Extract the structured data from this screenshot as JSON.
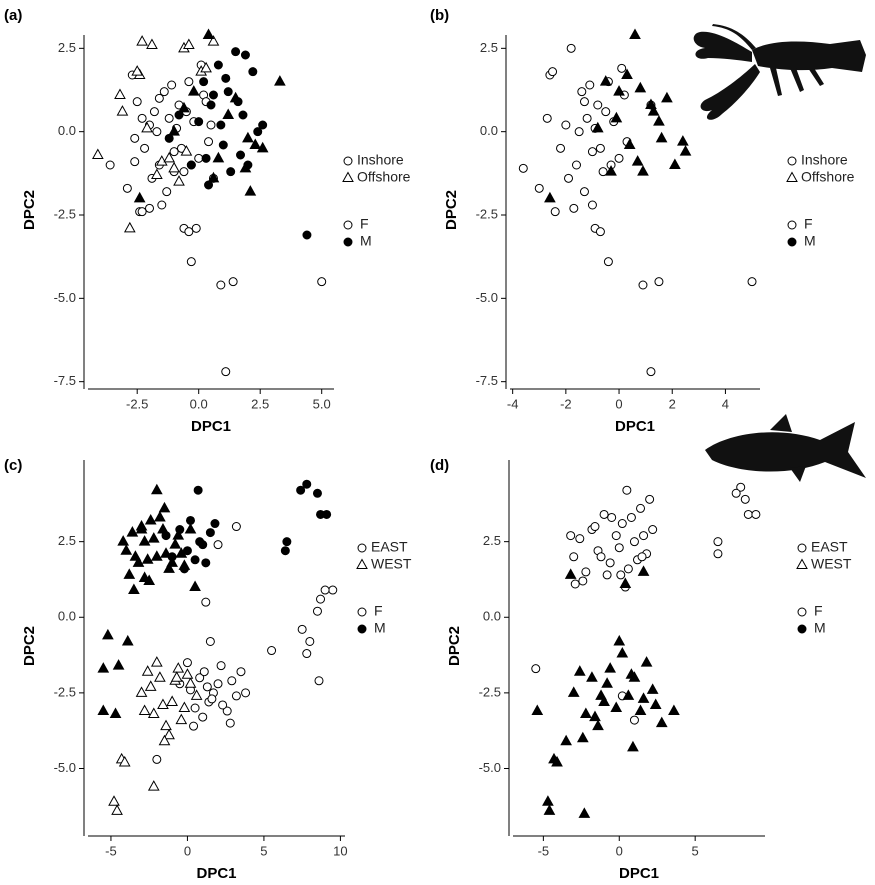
{
  "chart_data": [
    {
      "type": "scatter",
      "panel_label": "(a)",
      "xlabel": "DPC1",
      "ylabel": "DPC2",
      "xlim": [
        -4.5,
        5.5
      ],
      "ylim": [
        -7.6,
        2.9
      ],
      "xticks": [
        -2.5,
        {
          "value": 0,
          "label": "0.0"
        },
        2.5,
        {
          "value": 5,
          "label": "5.0"
        }
      ],
      "yticks": [
        -7.5,
        {
          "value": -5,
          "label": "-5.0"
        },
        -2.5,
        {
          "value": 0,
          "label": "0.0"
        },
        2.5
      ],
      "legend": {
        "shapes": [
          {
            "label": "Inshore",
            "shape": "circle"
          },
          {
            "label": "Offshore",
            "shape": "triangle"
          }
        ],
        "fills": [
          {
            "label": "F",
            "fill": "#ffffff"
          },
          {
            "label": "M",
            "fill": "#000000"
          }
        ]
      },
      "series": [
        {
          "shape": "circle",
          "fill": "#ffffff",
          "x": [
            -3.6,
            -2.9,
            -2.6,
            -2.3,
            -2.0,
            -1.5,
            -2.7,
            -2.5,
            -2.2,
            -2.0,
            -1.8,
            -1.6,
            -1.4,
            -1.2,
            -1.0,
            -0.8,
            -0.6,
            -0.4,
            -0.2,
            0.0,
            0.2,
            0.4,
            -1.9,
            -1.7,
            -1.3,
            -1.1,
            -0.9,
            -0.7,
            -0.5,
            -0.3,
            0.1,
            0.3,
            -2.4,
            -1.6,
            -0.6,
            -0.4,
            -0.1,
            -0.3,
            0.9,
            1.4,
            5.0,
            1.1,
            -2.3,
            -2.6,
            -1.0,
            0.5,
            0.6
          ],
          "y": [
            -1.0,
            -1.7,
            -0.2,
            0.4,
            -2.3,
            -2.2,
            1.7,
            0.9,
            -0.5,
            0.2,
            0.6,
            -1.0,
            1.2,
            0.4,
            -0.6,
            0.8,
            -1.2,
            1.5,
            0.3,
            -0.8,
            1.1,
            -0.3,
            -1.4,
            0.0,
            -1.8,
            1.4,
            0.1,
            -0.5,
            0.6,
            -1.0,
            2.0,
            0.9,
            -2.4,
            1.0,
            -2.9,
            -3.0,
            -2.9,
            -3.9,
            -4.6,
            -4.5,
            -4.5,
            -7.2,
            -2.4,
            -0.9,
            -1.2,
            0.2,
            -1.4
          ]
        },
        {
          "shape": "circle",
          "fill": "#000000",
          "x": [
            0.2,
            0.5,
            0.8,
            1.0,
            1.2,
            1.5,
            1.8,
            2.0,
            2.2,
            0.0,
            0.3,
            0.6,
            0.9,
            1.3,
            1.6,
            1.9,
            2.4,
            0.4,
            1.1,
            1.7,
            4.4,
            -1.2,
            -0.8,
            -0.3,
            2.6
          ],
          "y": [
            1.5,
            0.8,
            2.0,
            -0.4,
            1.2,
            2.4,
            0.5,
            -1.0,
            1.8,
            0.3,
            -0.8,
            1.1,
            0.2,
            -1.2,
            0.9,
            2.3,
            0.0,
            -1.6,
            1.6,
            -0.7,
            -3.1,
            -0.2,
            0.5,
            -1.0,
            0.2
          ]
        },
        {
          "shape": "triangle",
          "fill": "#ffffff",
          "x": [
            -4.1,
            -2.8,
            -2.4,
            -3.2,
            -3.1,
            -2.5,
            -2.3,
            -1.9,
            -0.6,
            -0.4,
            0.6,
            0.1,
            -1.5,
            -1.2,
            -1.0,
            -0.8,
            -1.7,
            -2.1,
            -0.5,
            0.3
          ],
          "y": [
            -0.7,
            -2.9,
            1.7,
            1.1,
            0.6,
            1.8,
            2.7,
            2.6,
            2.5,
            2.6,
            2.7,
            1.8,
            -0.9,
            -0.8,
            -1.1,
            -1.5,
            -1.3,
            0.1,
            -0.6,
            1.9
          ]
        },
        {
          "shape": "triangle",
          "fill": "#000000",
          "x": [
            3.3,
            0.4,
            -2.4,
            2.1,
            2.3,
            2.6,
            1.2,
            0.8,
            1.5,
            -0.2,
            -1.0,
            1.9,
            0.6,
            -0.6,
            2.0
          ],
          "y": [
            1.5,
            2.9,
            -2.0,
            -1.8,
            -0.4,
            -0.5,
            0.5,
            -0.8,
            1.0,
            1.2,
            0.0,
            -1.1,
            -1.4,
            0.7,
            -0.2
          ]
        }
      ]
    },
    {
      "type": "scatter",
      "panel_label": "(b)",
      "xlabel": "DPC1",
      "ylabel": "DPC2",
      "xlim": [
        -4.1,
        5.3
      ],
      "ylim": [
        -7.6,
        2.9
      ],
      "xticks": [
        -4,
        -2,
        0,
        2,
        4
      ],
      "yticks": [
        -7.5,
        {
          "value": -5,
          "label": "-5.0"
        },
        -2.5,
        {
          "value": 0,
          "label": "0.0"
        },
        2.5
      ],
      "legend": {
        "shapes": [
          {
            "label": "Inshore",
            "shape": "circle"
          },
          {
            "label": "Offshore",
            "shape": "triangle"
          }
        ],
        "fills": [
          {
            "label": "F",
            "fill": "#ffffff"
          },
          {
            "label": "M",
            "fill": "#000000"
          }
        ]
      },
      "series": [
        {
          "shape": "circle",
          "fill": "#ffffff",
          "x": [
            -3.6,
            -3.0,
            -2.6,
            -2.7,
            -2.5,
            -2.2,
            -2.0,
            -1.8,
            -1.6,
            -1.4,
            -1.2,
            -1.0,
            -0.8,
            -0.6,
            -0.4,
            -0.2,
            0.0,
            0.2,
            -1.9,
            -1.5,
            -1.3,
            -1.1,
            -0.9,
            -0.7,
            -0.5,
            -0.3,
            0.1,
            -2.4,
            -1.7,
            -1.0,
            -0.9,
            -0.7,
            -0.4,
            0.9,
            1.5,
            5.0,
            1.2,
            -1.3,
            1.2,
            0.3
          ],
          "y": [
            -1.1,
            -1.7,
            1.7,
            0.4,
            1.8,
            -0.5,
            0.2,
            2.5,
            -1.0,
            1.2,
            0.4,
            -0.6,
            0.8,
            -1.2,
            1.5,
            0.3,
            -0.8,
            1.1,
            -1.4,
            0.0,
            -1.8,
            1.4,
            0.1,
            -0.5,
            0.6,
            -1.0,
            1.9,
            -2.4,
            -2.3,
            -2.2,
            -2.9,
            -3.0,
            -3.9,
            -4.6,
            -4.5,
            -4.5,
            -7.2,
            0.9,
            0.8,
            -0.3
          ]
        },
        {
          "shape": "triangle",
          "fill": "#000000",
          "x": [
            -2.6,
            -0.5,
            0.0,
            0.3,
            0.6,
            0.8,
            1.2,
            1.5,
            1.8,
            2.1,
            2.4,
            2.5,
            1.3,
            0.7,
            -0.1,
            0.9,
            1.6,
            -0.8,
            0.4,
            -0.3
          ],
          "y": [
            -2.0,
            1.5,
            1.2,
            1.7,
            2.9,
            1.3,
            0.8,
            0.3,
            1.0,
            -1.0,
            -0.3,
            -0.6,
            0.6,
            -0.9,
            0.4,
            -1.2,
            -0.2,
            0.1,
            -0.4,
            -1.2
          ]
        }
      ]
    },
    {
      "type": "scatter",
      "panel_label": "(c)",
      "xlabel": "DPC1",
      "ylabel": "DPC2",
      "xlim": [
        -6.5,
        10.3
      ],
      "ylim": [
        -7.1,
        5.2
      ],
      "xticks": [
        -5,
        0,
        5,
        10
      ],
      "yticks": [
        {
          "value": -5,
          "label": "-5.0"
        },
        -2.5,
        {
          "value": 0,
          "label": "0.0"
        },
        2.5
      ],
      "legend": {
        "shapes": [
          {
            "label": "EAST",
            "shape": "circle"
          },
          {
            "label": "WEST",
            "shape": "triangle"
          }
        ],
        "fills": [
          {
            "label": "F",
            "fill": "#ffffff"
          },
          {
            "label": "M",
            "fill": "#000000"
          }
        ]
      },
      "series": [
        {
          "shape": "triangle",
          "fill": "#000000",
          "x": [
            -4.0,
            -3.6,
            -3.2,
            -2.8,
            -2.4,
            -2.0,
            -1.6,
            -1.2,
            -0.8,
            -0.4,
            -3.8,
            -3.4,
            -3.0,
            -2.6,
            -2.2,
            -1.8,
            -1.4,
            -1.0,
            -0.6,
            -0.2,
            -4.2,
            -3.0,
            -2.5,
            -1.5,
            0.2,
            -5.5,
            -5.5,
            -4.7,
            -5.2,
            -3.9,
            -4.5,
            -2.8,
            -3.5,
            -2.0,
            0.5
          ],
          "y": [
            2.2,
            2.8,
            1.8,
            2.5,
            3.2,
            2.0,
            2.9,
            1.6,
            2.4,
            2.1,
            1.4,
            2.0,
            2.9,
            1.9,
            2.6,
            3.3,
            2.1,
            1.8,
            2.7,
            1.7,
            2.5,
            3.0,
            1.2,
            3.6,
            2.9,
            -1.7,
            -3.1,
            -3.2,
            -0.6,
            -0.8,
            -1.6,
            1.3,
            0.9,
            4.2,
            1.0
          ]
        },
        {
          "shape": "circle",
          "fill": "#000000",
          "x": [
            7.8,
            7.4,
            8.5,
            8.7,
            9.1,
            6.5,
            6.4,
            0.7,
            -0.5,
            0.2,
            1.0,
            1.5,
            -1.0,
            0.5,
            1.8,
            -0.2,
            0.8,
            -1.4,
            1.2,
            0.0
          ],
          "y": [
            4.4,
            4.2,
            4.1,
            3.4,
            3.4,
            2.5,
            2.2,
            4.2,
            2.9,
            3.2,
            2.4,
            2.8,
            2.0,
            1.9,
            3.1,
            1.6,
            2.5,
            2.7,
            1.8,
            2.2
          ]
        },
        {
          "shape": "circle",
          "fill": "#ffffff",
          "x": [
            0.2,
            0.8,
            1.4,
            2.0,
            2.6,
            3.2,
            3.8,
            0.5,
            1.1,
            1.7,
            2.3,
            2.9,
            3.5,
            -0.5,
            1.0,
            1.6,
            2.2,
            2.8,
            0.0,
            1.3,
            9.5,
            9.0,
            8.7,
            8.5,
            7.5,
            8.0,
            7.8,
            8.6,
            5.5,
            2.0,
            3.2,
            1.2,
            -2.0,
            1.5,
            0.4
          ],
          "y": [
            -2.4,
            -2.0,
            -2.8,
            -2.2,
            -3.1,
            -2.6,
            -2.5,
            -3.0,
            -1.8,
            -2.5,
            -2.9,
            -2.1,
            -1.8,
            -2.2,
            -3.3,
            -2.7,
            -1.6,
            -3.5,
            -1.5,
            -2.3,
            0.9,
            0.9,
            0.6,
            0.2,
            -0.4,
            -0.8,
            -1.2,
            -2.1,
            -1.1,
            2.4,
            3.0,
            0.5,
            -4.7,
            -0.8,
            -3.6
          ]
        },
        {
          "shape": "triangle",
          "fill": "#ffffff",
          "x": [
            -3.0,
            -2.6,
            -2.2,
            -1.8,
            -1.4,
            -1.0,
            -0.6,
            -0.2,
            0.2,
            0.6,
            -2.8,
            -2.4,
            -2.0,
            -1.6,
            -1.2,
            -0.8,
            -0.4,
            0.0,
            -4.3,
            -4.1,
            -4.8,
            -4.6,
            -2.2,
            -0.7,
            -1.5
          ],
          "y": [
            -2.5,
            -1.8,
            -3.2,
            -2.0,
            -3.6,
            -2.8,
            -1.7,
            -3.0,
            -2.2,
            -2.6,
            -3.1,
            -2.3,
            -1.5,
            -2.9,
            -3.9,
            -2.1,
            -3.4,
            -1.9,
            -4.7,
            -4.8,
            -6.1,
            -6.4,
            -5.6,
            -2.0,
            -4.1
          ]
        }
      ]
    },
    {
      "type": "scatter",
      "panel_label": "(d)",
      "xlabel": "DPC1",
      "ylabel": "DPC2",
      "xlim": [
        -7,
        9.6
      ],
      "ylim": [
        -7.1,
        5.2
      ],
      "xticks": [
        -5,
        0,
        5
      ],
      "yticks": [
        {
          "value": -5,
          "label": "-5.0"
        },
        -2.5,
        {
          "value": 0,
          "label": "0.0"
        },
        2.5
      ],
      "legend": {
        "shapes": [
          {
            "label": "EAST",
            "shape": "circle"
          },
          {
            "label": "WEST",
            "shape": "triangle"
          }
        ],
        "fills": [
          {
            "label": "F",
            "fill": "#ffffff"
          },
          {
            "label": "M",
            "fill": "#000000"
          }
        ]
      },
      "series": [
        {
          "shape": "circle",
          "fill": "#ffffff",
          "x": [
            -3.0,
            -2.6,
            -2.2,
            -1.8,
            -1.4,
            -1.0,
            -0.6,
            -0.2,
            0.2,
            0.6,
            1.0,
            1.4,
            1.8,
            2.2,
            -2.4,
            -1.6,
            -0.8,
            0.0,
            0.8,
            1.6,
            -2.9,
            -1.2,
            0.4,
            1.2,
            2.0,
            8.0,
            7.7,
            8.3,
            8.5,
            9.0,
            6.5,
            6.5,
            0.5,
            -5.5,
            1.0,
            0.2,
            -3.2,
            0.1,
            1.5,
            -0.5
          ],
          "y": [
            2.0,
            2.6,
            1.5,
            2.9,
            2.2,
            3.4,
            1.8,
            2.7,
            3.1,
            1.6,
            2.5,
            3.6,
            2.1,
            2.9,
            1.2,
            3.0,
            1.4,
            2.3,
            3.3,
            2.7,
            1.1,
            2.0,
            1.0,
            1.9,
            3.9,
            4.3,
            4.1,
            3.9,
            3.4,
            3.4,
            2.5,
            2.1,
            4.2,
            -1.7,
            -3.4,
            -2.6,
            2.7,
            1.4,
            2.0,
            3.3
          ]
        },
        {
          "shape": "triangle",
          "fill": "#000000",
          "x": [
            -3.0,
            -2.6,
            -2.2,
            -1.8,
            -1.4,
            -1.0,
            -0.6,
            -0.2,
            0.2,
            0.6,
            1.0,
            1.4,
            1.8,
            2.2,
            2.8,
            -2.4,
            -1.6,
            -0.8,
            0.0,
            0.8,
            1.6,
            2.4,
            3.6,
            -5.4,
            -4.3,
            -4.1,
            -4.7,
            -4.6,
            -2.3,
            1.6,
            -3.2,
            0.4,
            -1.2,
            0.9,
            -3.5
          ],
          "y": [
            -2.5,
            -1.8,
            -3.2,
            -2.0,
            -3.6,
            -2.8,
            -1.7,
            -3.0,
            -1.2,
            -2.6,
            -2.0,
            -3.1,
            -1.5,
            -2.4,
            -3.5,
            -4.0,
            -3.3,
            -2.2,
            -0.8,
            -1.9,
            -2.7,
            -2.9,
            -3.1,
            -3.1,
            -4.7,
            -4.8,
            -6.1,
            -6.4,
            -6.5,
            1.5,
            1.4,
            1.1,
            -2.6,
            -4.3,
            -4.1
          ]
        }
      ]
    }
  ]
}
